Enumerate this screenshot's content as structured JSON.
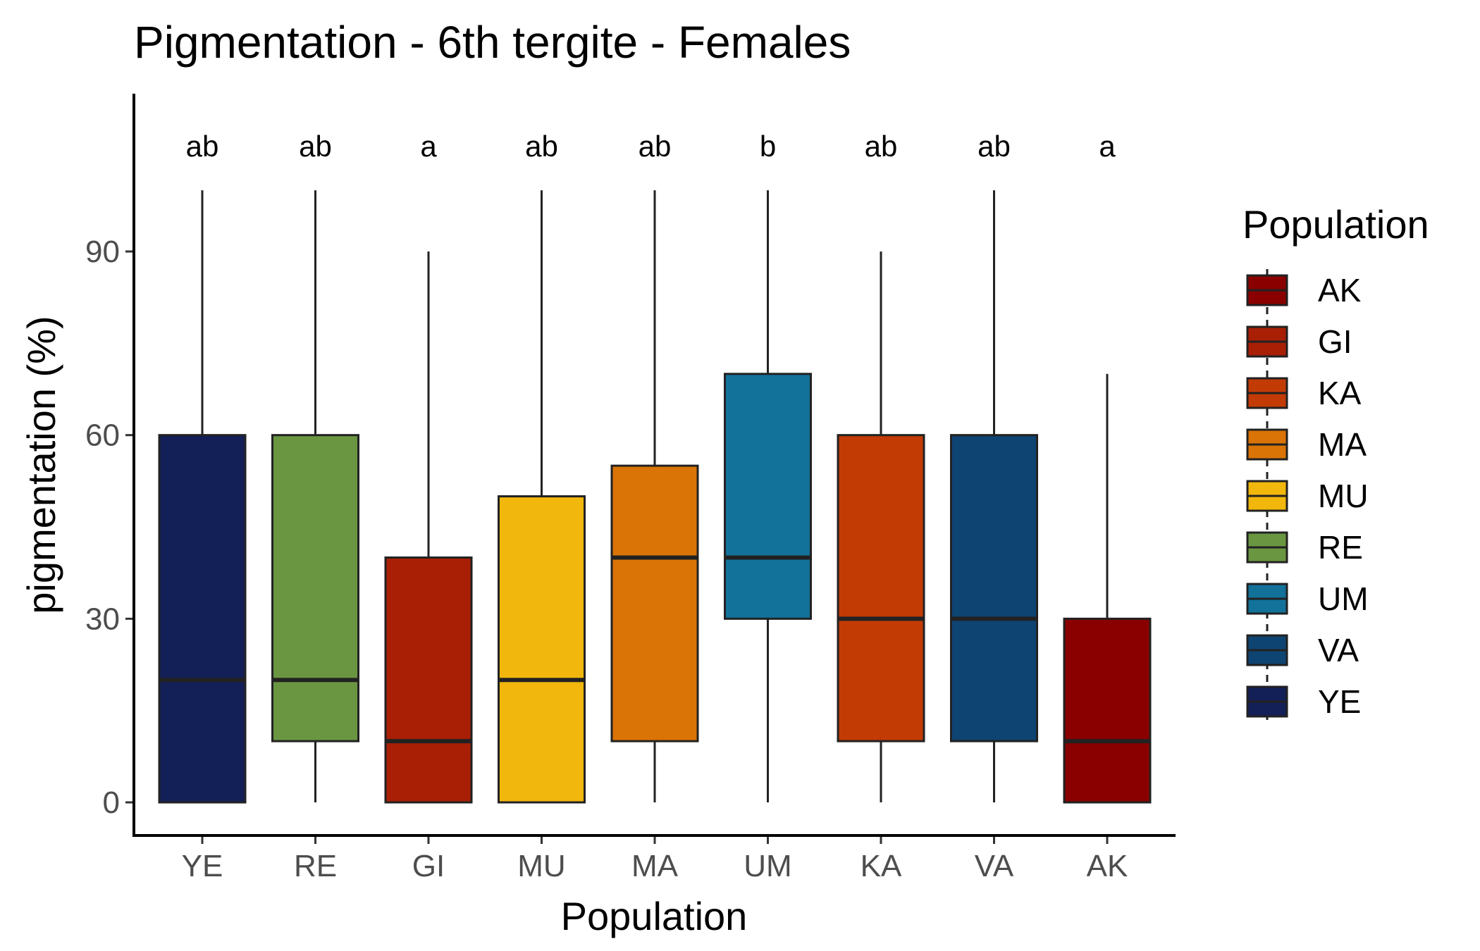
{
  "chart_data": {
    "type": "boxplot",
    "title": "Pigmentation - 6th tergite - Females",
    "xlabel": "Population",
    "ylabel": "pigmentation (%)",
    "ylim": [
      -5,
      115
    ],
    "yticks": [
      0,
      30,
      60,
      90
    ],
    "grid": false,
    "legend_placement": "right",
    "categories": [
      "YE",
      "RE",
      "GI",
      "MU",
      "MA",
      "UM",
      "KA",
      "VA",
      "AK"
    ],
    "boxes": [
      {
        "name": "YE",
        "min": 0,
        "q1": 0,
        "median": 20,
        "q3": 60,
        "max": 100,
        "letter": "ab",
        "color": "#131f57"
      },
      {
        "name": "RE",
        "min": 0,
        "q1": 10,
        "median": 20,
        "q3": 60,
        "max": 100,
        "letter": "ab",
        "color": "#6a9641"
      },
      {
        "name": "GI",
        "min": 0,
        "q1": 0,
        "median": 10,
        "q3": 40,
        "max": 90,
        "letter": "a",
        "color": "#a81f06"
      },
      {
        "name": "MU",
        "min": 0,
        "q1": 0,
        "median": 20,
        "q3": 50,
        "max": 100,
        "letter": "ab",
        "color": "#f2b70c"
      },
      {
        "name": "MA",
        "min": 0,
        "q1": 10,
        "median": 40,
        "q3": 55,
        "max": 100,
        "letter": "ab",
        "color": "#da7406"
      },
      {
        "name": "UM",
        "min": 0,
        "q1": 30,
        "median": 40,
        "q3": 70,
        "max": 100,
        "letter": "b",
        "color": "#127299"
      },
      {
        "name": "KA",
        "min": 0,
        "q1": 10,
        "median": 30,
        "q3": 60,
        "max": 90,
        "letter": "ab",
        "color": "#c23b05"
      },
      {
        "name": "VA",
        "min": 0,
        "q1": 10,
        "median": 30,
        "q3": 60,
        "max": 100,
        "letter": "ab",
        "color": "#0e4472"
      },
      {
        "name": "AK",
        "min": 0,
        "q1": 0,
        "median": 10,
        "q3": 30,
        "max": 70,
        "letter": "a",
        "color": "#8a0000"
      }
    ],
    "legend": {
      "title": "Population",
      "items": [
        {
          "label": "AK",
          "color": "#8a0000"
        },
        {
          "label": "GI",
          "color": "#a81f06"
        },
        {
          "label": "KA",
          "color": "#c23b05"
        },
        {
          "label": "MA",
          "color": "#da7406"
        },
        {
          "label": "MU",
          "color": "#f2b70c"
        },
        {
          "label": "RE",
          "color": "#6a9641"
        },
        {
          "label": "UM",
          "color": "#127299"
        },
        {
          "label": "VA",
          "color": "#0e4472"
        },
        {
          "label": "YE",
          "color": "#131f57"
        }
      ]
    },
    "outline_color": "#222222"
  }
}
